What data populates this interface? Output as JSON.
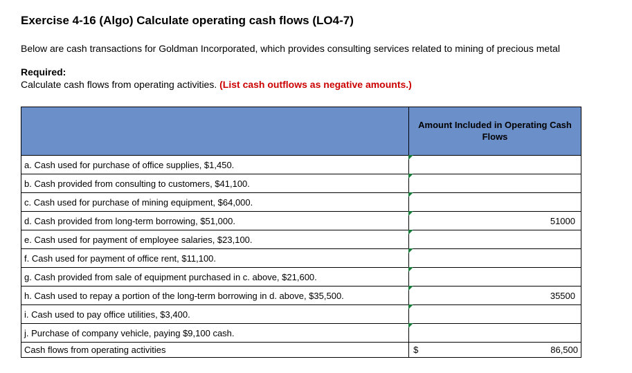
{
  "title": "Exercise 4-16 (Algo) Calculate operating cash flows (LO4-7)",
  "intro": "Below are cash transactions for Goldman Incorporated, which provides consulting services related to mining of precious metal",
  "required_label": "Required:",
  "required_text": "Calculate cash flows from operating activities. ",
  "required_hint": "(List cash outflows as negative amounts.)",
  "header_amount": "Amount Included in Operating Cash Flows",
  "rows": [
    {
      "label": "a. Cash used for purchase of office supplies, $1,450.",
      "value": ""
    },
    {
      "label": "b. Cash provided from consulting to customers, $41,100.",
      "value": ""
    },
    {
      "label": "c. Cash used for purchase of mining equipment, $64,000.",
      "value": ""
    },
    {
      "label": "d. Cash provided from long-term borrowing, $51,000.",
      "value": "51000"
    },
    {
      "label": "e. Cash used for payment of employee salaries, $23,100.",
      "value": ""
    },
    {
      "label": "f. Cash used for payment of office rent, $11,100.",
      "value": ""
    },
    {
      "label": "g. Cash provided from sale of equipment purchased in c. above, $21,600.",
      "value": ""
    },
    {
      "label": "h. Cash used to repay a portion of the long-term borrowing in d. above, $35,500.",
      "value": "35500"
    },
    {
      "label": "i. Cash used to pay office utilities, $3,400.",
      "value": ""
    },
    {
      "label": "j.   Purchase of company vehicle, paying $9,100 cash.",
      "value": ""
    }
  ],
  "total_label": "Cash flows from operating activities",
  "total_currency": "$",
  "total_value": "86,500",
  "colors": {
    "header_bg": "#6a8fc9",
    "marker": "#1a7a3a",
    "hint_red": "#cc0000",
    "border": "#000000",
    "background": "#ffffff"
  }
}
